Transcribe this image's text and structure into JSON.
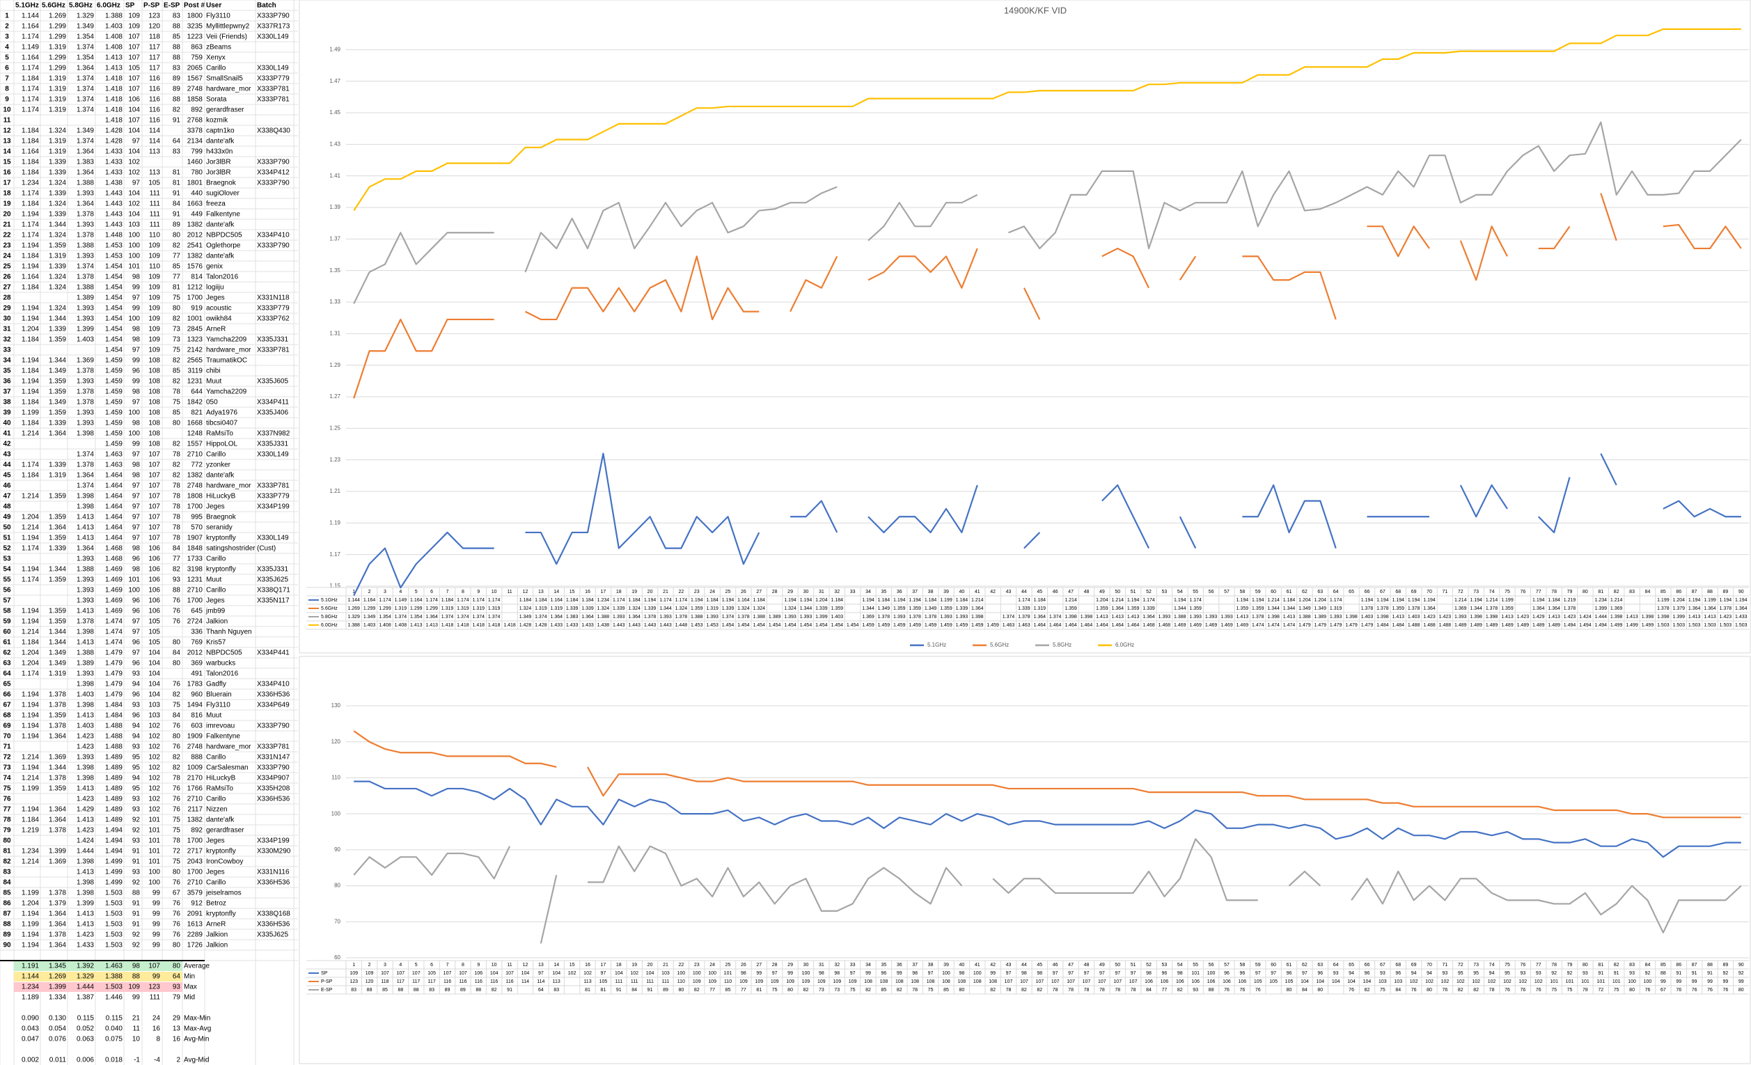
{
  "table": {
    "header": [
      null,
      "5.1GHz",
      "5.6GHz",
      "5.8GHz",
      "6.0GHz",
      "SP",
      "P-SP",
      "E-SP",
      "Post #",
      "User",
      "Batch"
    ],
    "rows": [
      [
        1,
        1.144,
        1.269,
        1.329,
        1.388,
        109,
        123,
        83,
        1800,
        "Fly3110",
        "X333P790"
      ],
      [
        2,
        1.164,
        1.299,
        1.349,
        1.403,
        109,
        120,
        88,
        3235,
        "Myllittlepwny2",
        "X337R173"
      ],
      [
        3,
        1.174,
        1.299,
        1.354,
        1.408,
        107,
        118,
        85,
        1223,
        "Veii (Friends)",
        "X330L149"
      ],
      [
        4,
        1.149,
        1.319,
        1.374,
        1.408,
        107,
        117,
        88,
        863,
        "zBeams",
        null
      ],
      [
        5,
        1.164,
        1.299,
        1.354,
        1.413,
        107,
        117,
        88,
        759,
        "Xenyx",
        null
      ],
      [
        6,
        1.174,
        1.299,
        1.364,
        1.413,
        105,
        117,
        83,
        2065,
        "Carillo",
        "X330L149"
      ],
      [
        7,
        1.184,
        1.319,
        1.374,
        1.418,
        107,
        116,
        89,
        1567,
        "SmallSnail5",
        "X333P779"
      ],
      [
        8,
        1.174,
        1.319,
        1.374,
        1.418,
        107,
        116,
        89,
        2748,
        "hardware_mor",
        "X333P781"
      ],
      [
        9,
        1.174,
        1.319,
        1.374,
        1.418,
        106,
        116,
        88,
        1858,
        "Sorata",
        "X333P781"
      ],
      [
        10,
        1.174,
        1.319,
        1.374,
        1.418,
        104,
        116,
        82,
        892,
        "gerardfraser",
        null
      ],
      [
        11,
        null,
        null,
        null,
        1.418,
        107,
        116,
        91,
        2768,
        "kozmik",
        null
      ],
      [
        12,
        1.184,
        1.324,
        1.349,
        1.428,
        104,
        114,
        null,
        3378,
        "captn1ko",
        "X338Q430"
      ],
      [
        13,
        1.184,
        1.319,
        1.374,
        1.428,
        97,
        114,
        64,
        2134,
        "dante'afk",
        null
      ],
      [
        14,
        1.164,
        1.319,
        1.364,
        1.433,
        104,
        113,
        83,
        799,
        "h433x0n",
        null
      ],
      [
        15,
        1.184,
        1.339,
        1.383,
        1.433,
        102,
        null,
        null,
        1460,
        "Jor3lBR",
        "X333P790"
      ],
      [
        16,
        1.184,
        1.339,
        1.364,
        1.433,
        102,
        113,
        81,
        780,
        "Jor3lBR",
        "X334P412"
      ],
      [
        17,
        1.234,
        1.324,
        1.388,
        1.438,
        97,
        105,
        81,
        1801,
        "Braegnok",
        "X333P790"
      ],
      [
        18,
        1.174,
        1.339,
        1.393,
        1.443,
        104,
        111,
        91,
        440,
        "sugiOlover",
        null
      ],
      [
        19,
        1.184,
        1.324,
        1.364,
        1.443,
        102,
        111,
        84,
        1663,
        "freeza",
        null
      ],
      [
        20,
        1.194,
        1.339,
        1.378,
        1.443,
        104,
        111,
        91,
        449,
        "Falkentyne",
        null
      ],
      [
        21,
        1.174,
        1.344,
        1.393,
        1.443,
        103,
        111,
        89,
        1382,
        "dante'afk",
        null
      ],
      [
        22,
        1.174,
        1.324,
        1.378,
        1.448,
        100,
        110,
        80,
        2012,
        "NBPDC505",
        "X334P410"
      ],
      [
        23,
        1.194,
        1.359,
        1.388,
        1.453,
        100,
        109,
        82,
        2541,
        "Oglethorpe",
        "X333P790"
      ],
      [
        24,
        1.184,
        1.319,
        1.393,
        1.453,
        100,
        109,
        77,
        1382,
        "dante'afk",
        null
      ],
      [
        25,
        1.194,
        1.339,
        1.374,
        1.454,
        101,
        110,
        85,
        1576,
        "genix",
        null
      ],
      [
        26,
        1.164,
        1.324,
        1.378,
        1.454,
        98,
        109,
        77,
        814,
        "Talon2016",
        null
      ],
      [
        27,
        1.184,
        1.324,
        1.388,
        1.454,
        99,
        109,
        81,
        1212,
        "logiiju",
        null
      ],
      [
        28,
        null,
        null,
        1.389,
        1.454,
        97,
        109,
        75,
        1700,
        "Jeges",
        "X331N118"
      ],
      [
        29,
        1.194,
        1.324,
        1.393,
        1.454,
        99,
        109,
        80,
        919,
        "acoustic",
        "X333P779"
      ],
      [
        30,
        1.194,
        1.344,
        1.393,
        1.454,
        100,
        109,
        82,
        1001,
        "owikh84",
        "X333P762"
      ],
      [
        31,
        1.204,
        1.339,
        1.399,
        1.454,
        98,
        109,
        73,
        2845,
        "ArneR",
        null
      ],
      [
        32,
        1.184,
        1.359,
        1.403,
        1.454,
        98,
        109,
        73,
        1323,
        "Yamcha2209",
        "X335J331"
      ],
      [
        33,
        null,
        null,
        null,
        1.454,
        97,
        109,
        75,
        2142,
        "hardware_mor",
        "X333P781"
      ],
      [
        34,
        1.194,
        1.344,
        1.369,
        1.459,
        99,
        108,
        82,
        2565,
        "TraumatikOC",
        null
      ],
      [
        35,
        1.184,
        1.349,
        1.378,
        1.459,
        96,
        108,
        85,
        3119,
        "chibi",
        null
      ],
      [
        36,
        1.194,
        1.359,
        1.393,
        1.459,
        99,
        108,
        82,
        1231,
        "Muut",
        "X335J605"
      ],
      [
        37,
        1.194,
        1.359,
        1.378,
        1.459,
        98,
        108,
        78,
        644,
        "Yamcha2209",
        null
      ],
      [
        38,
        1.184,
        1.349,
        1.378,
        1.459,
        97,
        108,
        75,
        1842,
        "050",
        "X334P411"
      ],
      [
        39,
        1.199,
        1.359,
        1.393,
        1.459,
        100,
        108,
        85,
        821,
        "Adya1976",
        "X335J406"
      ],
      [
        40,
        1.184,
        1.339,
        1.393,
        1.459,
        98,
        108,
        80,
        1668,
        "tibcsi0407",
        null
      ],
      [
        41,
        1.214,
        1.364,
        1.398,
        1.459,
        100,
        108,
        null,
        1248,
        "RaMsiTo",
        "X337N982"
      ],
      [
        42,
        null,
        null,
        null,
        1.459,
        99,
        108,
        82,
        1557,
        "HippoLOL",
        "X335J331"
      ],
      [
        43,
        null,
        null,
        1.374,
        1.463,
        97,
        107,
        78,
        2710,
        "Carillo",
        "X330L149"
      ],
      [
        44,
        1.174,
        1.339,
        1.378,
        1.463,
        98,
        107,
        82,
        772,
        "yzonker",
        null
      ],
      [
        45,
        1.184,
        1.319,
        1.364,
        1.464,
        98,
        107,
        82,
        1382,
        "dante'afk",
        null
      ],
      [
        46,
        null,
        null,
        1.374,
        1.464,
        97,
        107,
        78,
        2748,
        "hardware_mor",
        "X333P781"
      ],
      [
        47,
        1.214,
        1.359,
        1.398,
        1.464,
        97,
        107,
        78,
        1808,
        "HiLuckyB",
        "X333P779"
      ],
      [
        48,
        null,
        null,
        1.398,
        1.464,
        97,
        107,
        78,
        1700,
        "Jeges",
        "X334P199"
      ],
      [
        49,
        1.204,
        1.359,
        1.413,
        1.464,
        97,
        107,
        78,
        995,
        "Braegnok",
        null
      ],
      [
        50,
        1.214,
        1.364,
        1.413,
        1.464,
        97,
        107,
        78,
        570,
        "seranidy",
        null
      ],
      [
        51,
        1.194,
        1.359,
        1.413,
        1.464,
        97,
        107,
        78,
        1907,
        "kryptonfly",
        "X330L149"
      ],
      [
        52,
        1.174,
        1.339,
        1.364,
        1.468,
        98,
        106,
        84,
        1848,
        "satingshostrider",
        "(Cust)"
      ],
      [
        53,
        null,
        null,
        1.393,
        1.468,
        96,
        106,
        77,
        1733,
        "Carillo",
        null
      ],
      [
        54,
        1.194,
        1.344,
        1.388,
        1.469,
        98,
        106,
        82,
        3198,
        "kryptonfly",
        "X335J331"
      ],
      [
        55,
        1.174,
        1.359,
        1.393,
        1.469,
        101,
        106,
        93,
        1231,
        "Muut",
        "X335J625"
      ],
      [
        56,
        null,
        null,
        1.393,
        1.469,
        100,
        106,
        88,
        2710,
        "Carillo",
        "X338Q171"
      ],
      [
        57,
        null,
        null,
        1.393,
        1.469,
        96,
        106,
        76,
        1700,
        "Jeges",
        "X335N117"
      ],
      [
        58,
        1.194,
        1.359,
        1.413,
        1.469,
        96,
        106,
        76,
        645,
        "jmb99",
        null
      ],
      [
        59,
        1.194,
        1.359,
        1.378,
        1.474,
        97,
        105,
        76,
        2724,
        "Jalkion",
        null
      ],
      [
        60,
        1.214,
        1.344,
        1.398,
        1.474,
        97,
        105,
        null,
        336,
        "Thanh Nguyen",
        null
      ],
      [
        61,
        1.184,
        1.344,
        1.413,
        1.474,
        96,
        105,
        80,
        769,
        "Kris57",
        null
      ],
      [
        62,
        1.204,
        1.349,
        1.388,
        1.479,
        97,
        104,
        84,
        2012,
        "NBPDC505",
        "X334P441"
      ],
      [
        63,
        1.204,
        1.349,
        1.389,
        1.479,
        96,
        104,
        80,
        369,
        "warbucks",
        null
      ],
      [
        64,
        1.174,
        1.319,
        1.393,
        1.479,
        93,
        104,
        null,
        491,
        "Talon2016",
        null
      ],
      [
        65,
        null,
        null,
        1.398,
        1.479,
        94,
        104,
        76,
        1783,
        "Gadfly",
        "X334P410"
      ],
      [
        66,
        1.194,
        1.378,
        1.403,
        1.479,
        96,
        104,
        82,
        960,
        "Bluerain",
        "X336H536"
      ],
      [
        67,
        1.194,
        1.378,
        1.398,
        1.484,
        93,
        103,
        75,
        1494,
        "Fly3110",
        "X334P649"
      ],
      [
        68,
        1.194,
        1.359,
        1.413,
        1.484,
        96,
        103,
        84,
        816,
        "Muut",
        null
      ],
      [
        69,
        1.194,
        1.378,
        1.403,
        1.488,
        94,
        102,
        76,
        603,
        "imrevoau",
        "X333P790"
      ],
      [
        70,
        1.194,
        1.364,
        1.423,
        1.488,
        94,
        102,
        80,
        1909,
        "Falkentyne",
        null
      ],
      [
        71,
        null,
        null,
        1.423,
        1.488,
        93,
        102,
        76,
        2748,
        "hardware_mor",
        "X333P781"
      ],
      [
        72,
        1.214,
        1.369,
        1.393,
        1.489,
        95,
        102,
        82,
        888,
        "Carillo",
        "X331N147"
      ],
      [
        73,
        1.194,
        1.344,
        1.398,
        1.489,
        95,
        102,
        82,
        1009,
        "CarSalesman",
        "X333P790"
      ],
      [
        74,
        1.214,
        1.378,
        1.398,
        1.489,
        94,
        102,
        78,
        2170,
        "HiLuckyB",
        "X334P907"
      ],
      [
        75,
        1.199,
        1.359,
        1.413,
        1.489,
        95,
        102,
        76,
        1766,
        "RaMsiTo",
        "X335H208"
      ],
      [
        76,
        null,
        null,
        1.423,
        1.489,
        93,
        102,
        76,
        2710,
        "Carillo",
        "X336H536"
      ],
      [
        77,
        1.194,
        1.364,
        1.429,
        1.489,
        93,
        102,
        76,
        2117,
        "Nizzen",
        null
      ],
      [
        78,
        1.184,
        1.364,
        1.413,
        1.489,
        92,
        101,
        75,
        1382,
        "dante'afk",
        null
      ],
      [
        79,
        1.219,
        1.378,
        1.423,
        1.494,
        92,
        101,
        75,
        892,
        "gerardfraser",
        null
      ],
      [
        80,
        null,
        null,
        1.424,
        1.494,
        93,
        101,
        78,
        1700,
        "Jeges",
        "X334P199"
      ],
      [
        81,
        1.234,
        1.399,
        1.444,
        1.494,
        91,
        101,
        72,
        2717,
        "kryptonfly",
        "X330M290"
      ],
      [
        82,
        1.214,
        1.369,
        1.398,
        1.499,
        91,
        101,
        75,
        2043,
        "IronCowboy",
        null
      ],
      [
        83,
        null,
        null,
        1.413,
        1.499,
        93,
        100,
        80,
        1700,
        "Jeges",
        "X331N116"
      ],
      [
        84,
        null,
        null,
        1.398,
        1.499,
        92,
        100,
        76,
        2710,
        "Carillo",
        "X336H536"
      ],
      [
        85,
        1.199,
        1.378,
        1.398,
        1.503,
        88,
        99,
        67,
        3579,
        "jeiselramos",
        null
      ],
      [
        86,
        1.204,
        1.379,
        1.399,
        1.503,
        91,
        99,
        76,
        912,
        "Betroz",
        null
      ],
      [
        87,
        1.194,
        1.364,
        1.413,
        1.503,
        91,
        99,
        76,
        2091,
        "kryptonfly",
        "X338Q168"
      ],
      [
        88,
        1.199,
        1.364,
        1.413,
        1.503,
        91,
        99,
        76,
        1613,
        "ArneR",
        "X336H536"
      ],
      [
        89,
        1.194,
        1.378,
        1.423,
        1.503,
        92,
        99,
        76,
        2289,
        "Jalkion",
        "X335J625"
      ],
      [
        90,
        1.194,
        1.364,
        1.433,
        1.503,
        92,
        99,
        80,
        1726,
        "Jalkion",
        null
      ]
    ]
  },
  "summary": [
    {
      "label": "Average",
      "color": "#c6efce",
      "values": [
        "1.191",
        "1.345",
        "1.392",
        "1.463",
        "98",
        "107",
        "80"
      ]
    },
    {
      "label": "Min",
      "color": "#ffeb9c",
      "values": [
        "1.144",
        "1.269",
        "1.329",
        "1.388",
        "88",
        "99",
        "64"
      ]
    },
    {
      "label": "Max",
      "color": "#ffc7ce",
      "values": [
        "1.234",
        "1.399",
        "1.444",
        "1.503",
        "109",
        "123",
        "93"
      ]
    },
    {
      "label": "Mid",
      "values": [
        "1.189",
        "1.334",
        "1.387",
        "1.446",
        "99",
        "111",
        "79"
      ]
    },
    {
      "label": "Max-Min",
      "values": [
        "0.090",
        "0.130",
        "0.115",
        "0.115",
        "21",
        "24",
        "29"
      ]
    },
    {
      "label": "Max-Avg",
      "values": [
        "0.043",
        "0.054",
        "0.052",
        "0.040",
        "11",
        "16",
        "13"
      ]
    },
    {
      "label": "Avg-Min",
      "values": [
        "0.047",
        "0.076",
        "0.063",
        "0.075",
        "10",
        "8",
        "16"
      ]
    },
    {
      "label": "Avg-Mid",
      "values": [
        "0.002",
        "0.011",
        "0.006",
        "0.018",
        "-1",
        "-4",
        "2"
      ]
    }
  ],
  "chart_data": [
    {
      "type": "line",
      "title": "14900K/KF VID",
      "ylim": [
        1.15,
        1.51
      ],
      "yticks": [
        1.15,
        1.17,
        1.19,
        1.21,
        1.23,
        1.25,
        1.27,
        1.29,
        1.31,
        1.33,
        1.35,
        1.37,
        1.39,
        1.41,
        1.43,
        1.45,
        1.47,
        1.49
      ],
      "grid": true,
      "legend": "bottom",
      "colors": [
        "#4472c4",
        "#ed7d31",
        "#a5a5a5",
        "#ffc000"
      ]
    },
    {
      "type": "line",
      "ylim": [
        60,
        130
      ],
      "yticks": [
        60,
        70,
        80,
        90,
        100,
        110,
        120,
        130
      ],
      "grid": true,
      "colors": [
        "#4472c4",
        "#ed7d31",
        "#a5a5a5"
      ]
    }
  ]
}
